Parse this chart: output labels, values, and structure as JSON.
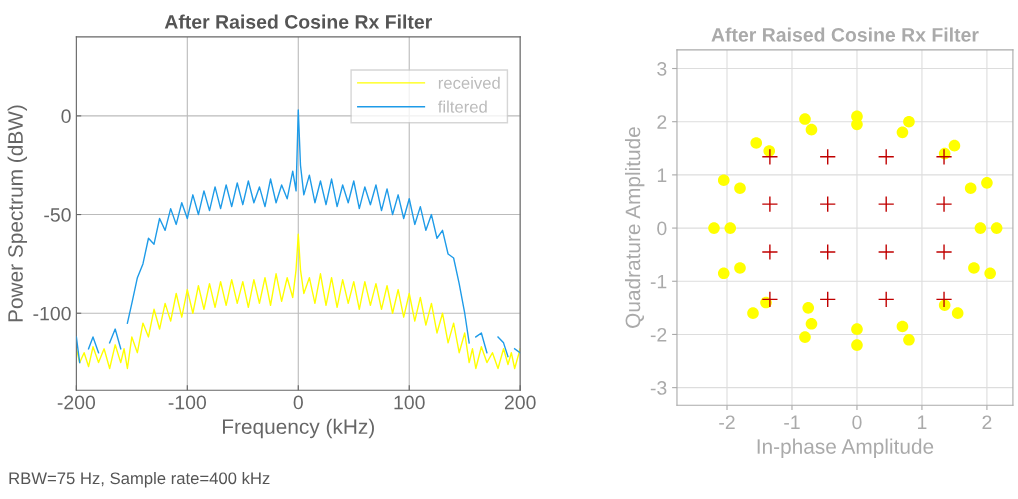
{
  "chart_data": [
    {
      "type": "line",
      "title": "After Raised Cosine Rx Filter",
      "xlabel": "Frequency (kHz)",
      "ylabel": "Power Spectrum (dBW)",
      "x": [
        -200,
        -197,
        -193,
        -189,
        -185,
        -180,
        -175,
        -170,
        -165,
        -160,
        -157,
        -154,
        -150,
        -145,
        -140,
        -135,
        -130,
        -125,
        -120,
        -115,
        -110,
        -105,
        -100,
        -95,
        -90,
        -85,
        -80,
        -75,
        -70,
        -65,
        -60,
        -55,
        -50,
        -45,
        -40,
        -35,
        -30,
        -25,
        -20,
        -15,
        -10,
        -5,
        -2,
        0,
        2,
        5,
        10,
        15,
        20,
        25,
        30,
        35,
        40,
        45,
        50,
        55,
        60,
        65,
        70,
        75,
        80,
        85,
        90,
        95,
        100,
        105,
        110,
        115,
        120,
        125,
        130,
        135,
        140,
        145,
        150,
        154,
        157,
        160,
        165,
        170,
        175,
        180,
        185,
        189,
        192,
        195,
        200
      ],
      "series": [
        {
          "name": "received",
          "color": "#ffff00",
          "values": [
            -118,
            -125,
            -120,
            -127,
            -117,
            -125,
            -118,
            -128,
            -116,
            -125,
            -118,
            -128,
            -112,
            -120,
            -105,
            -112,
            -98,
            -108,
            -95,
            -104,
            -90,
            -102,
            -88,
            -100,
            -86,
            -98,
            -85,
            -97,
            -84,
            -96,
            -83,
            -95,
            -84,
            -97,
            -83,
            -95,
            -82,
            -96,
            -80,
            -94,
            -82,
            -92,
            -78,
            -60,
            -78,
            -90,
            -82,
            -95,
            -80,
            -96,
            -82,
            -97,
            -83,
            -95,
            -84,
            -98,
            -84,
            -96,
            -85,
            -98,
            -86,
            -100,
            -88,
            -102,
            -90,
            -104,
            -92,
            -106,
            -95,
            -110,
            -100,
            -115,
            -105,
            -120,
            -110,
            -125,
            -118,
            -128,
            -117,
            -125,
            -120,
            -128,
            -118,
            -126,
            -120,
            -128,
            -118
          ]
        },
        {
          "name": "filtered",
          "color": "#1e9be8",
          "values": [
            -112,
            -125,
            null,
            -118,
            -112,
            -120,
            null,
            -115,
            -108,
            -118,
            null,
            -105,
            -95,
            -82,
            -75,
            -62,
            -65,
            -52,
            -58,
            -47,
            -55,
            -44,
            -52,
            -40,
            -50,
            -38,
            -48,
            -36,
            -47,
            -35,
            -46,
            -34,
            -45,
            -33,
            -44,
            -36,
            -46,
            -32,
            -44,
            -35,
            -42,
            -28,
            -38,
            3,
            -25,
            -40,
            -30,
            -44,
            -33,
            -45,
            -32,
            -46,
            -35,
            -44,
            -33,
            -47,
            -36,
            -45,
            -35,
            -48,
            -37,
            -50,
            -40,
            -52,
            -42,
            -55,
            -46,
            -58,
            -50,
            -62,
            -58,
            -70,
            -72,
            -85,
            -100,
            -115,
            null,
            -112,
            -110,
            -120,
            null,
            -112,
            -115,
            -122,
            null,
            -118,
            -120
          ]
        }
      ],
      "xlim": [
        -200,
        200
      ],
      "xticks": [
        -200,
        -100,
        0,
        100,
        200
      ],
      "ylim": [
        -139,
        40
      ],
      "yticks": [
        -100,
        -50,
        0
      ],
      "grid": true,
      "legend": "top right",
      "annotations": [
        "RBW=75 Hz, Sample rate=400 kHz"
      ]
    },
    {
      "type": "scatter",
      "title": "After Raised Cosine Rx Filter",
      "xlabel": "In-phase Amplitude",
      "ylabel": "Quadrature Amplitude",
      "series": [
        {
          "color": "#ffff00",
          "marker": "circle",
          "x": [
            2.15,
            2.0,
            1.5,
            0.8,
            0,
            -0.8,
            -1.55,
            -2.05,
            -2.2,
            -2.05,
            -1.6,
            -0.8,
            0,
            0.8,
            1.55,
            2.05,
            1.9,
            1.75,
            1.35,
            0.7,
            0,
            -0.7,
            -1.35,
            -1.8,
            -1.95,
            -1.8,
            -1.4,
            -0.7,
            0,
            0.7,
            1.35,
            1.8,
            -0.75
          ],
          "values": [
            0,
            0.85,
            1.55,
            2.0,
            2.1,
            2.05,
            1.6,
            0.9,
            0,
            -0.85,
            -1.6,
            -2.05,
            -2.2,
            -2.1,
            -1.6,
            -0.85,
            0,
            0.75,
            1.4,
            1.8,
            1.95,
            1.85,
            1.45,
            0.75,
            0,
            -0.75,
            -1.4,
            -1.8,
            -1.9,
            -1.85,
            -1.45,
            -0.75,
            -1.5
          ]
        },
        {
          "color": "#c00000",
          "marker": "cross",
          "x": [
            -1.34,
            -0.45,
            0.45,
            1.34,
            -1.34,
            -0.45,
            0.45,
            1.34,
            -1.34,
            -0.45,
            0.45,
            1.34,
            -1.34,
            -0.45,
            0.45,
            1.34
          ],
          "values": [
            1.34,
            1.34,
            1.34,
            1.34,
            0.45,
            0.45,
            0.45,
            0.45,
            -0.45,
            -0.45,
            -0.45,
            -0.45,
            -1.34,
            -1.34,
            -1.34,
            -1.34
          ]
        }
      ],
      "xlim": [
        -2.77,
        2.4
      ],
      "xticks": [
        -2,
        -1,
        0,
        1,
        2
      ],
      "ylim": [
        -3.33,
        3.35
      ],
      "yticks": [
        -3,
        -2,
        -1,
        0,
        1,
        2,
        3
      ],
      "grid": true
    }
  ]
}
